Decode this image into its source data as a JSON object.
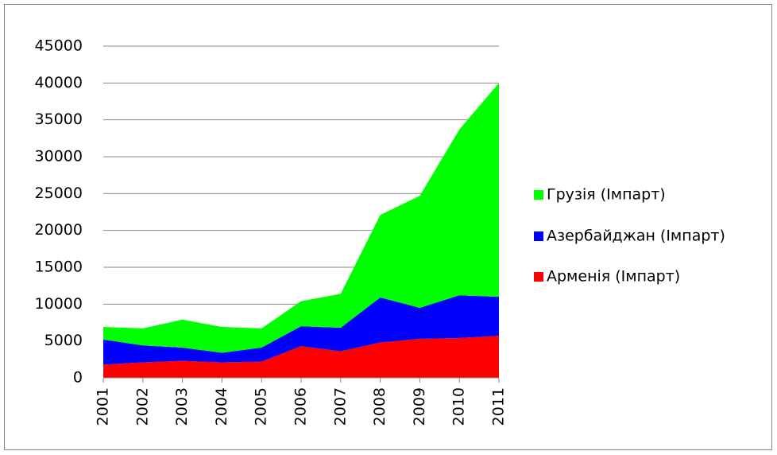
{
  "chart_data": {
    "type": "stacked_area",
    "categories": [
      "2001",
      "2002",
      "2003",
      "2004",
      "2005",
      "2006",
      "2007",
      "2008",
      "2009",
      "2010",
      "2011"
    ],
    "series": [
      {
        "name": "Арменія (Імпарт)",
        "color": "#ff0000",
        "values": [
          1800,
          2100,
          2300,
          2100,
          2200,
          4300,
          3600,
          4800,
          5300,
          5400,
          5700
        ]
      },
      {
        "name": "Азербайджан (Імпарт)",
        "color": "#0000ff",
        "values": [
          3400,
          2300,
          1800,
          1300,
          1900,
          2700,
          3200,
          6100,
          4200,
          5800,
          5300
        ]
      },
      {
        "name": "Грузія (Імпарт)",
        "color": "#00ff00",
        "values": [
          1700,
          2300,
          3800,
          3500,
          2600,
          3400,
          4600,
          11200,
          15200,
          22500,
          29000
        ]
      }
    ],
    "ylim": [
      0,
      45000
    ],
    "yticks": [
      0,
      5000,
      10000,
      15000,
      20000,
      25000,
      30000,
      35000,
      40000,
      45000
    ],
    "grid": true,
    "legend": "right"
  }
}
